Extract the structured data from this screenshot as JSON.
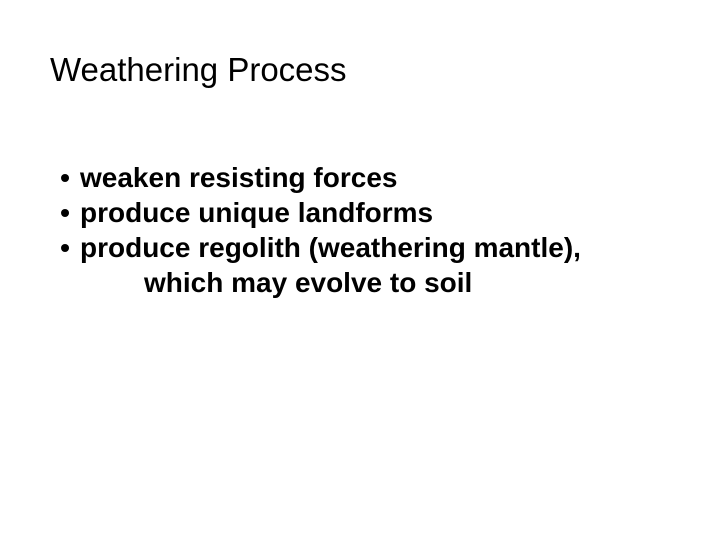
{
  "title": "Weathering Process",
  "bullets": {
    "item1": "weaken resisting forces",
    "item2": "produce unique landforms",
    "item3_line1": "produce regolith (weathering mantle),",
    "item3_line2": "which may evolve to soil"
  },
  "style": {
    "background_color": "#ffffff",
    "text_color": "#000000",
    "title_fontsize": 33,
    "title_fontweight": 400,
    "body_fontsize": 28,
    "body_fontweight": 700,
    "font_family": "Arial, Helvetica, sans-serif",
    "bullet_char": "•"
  }
}
